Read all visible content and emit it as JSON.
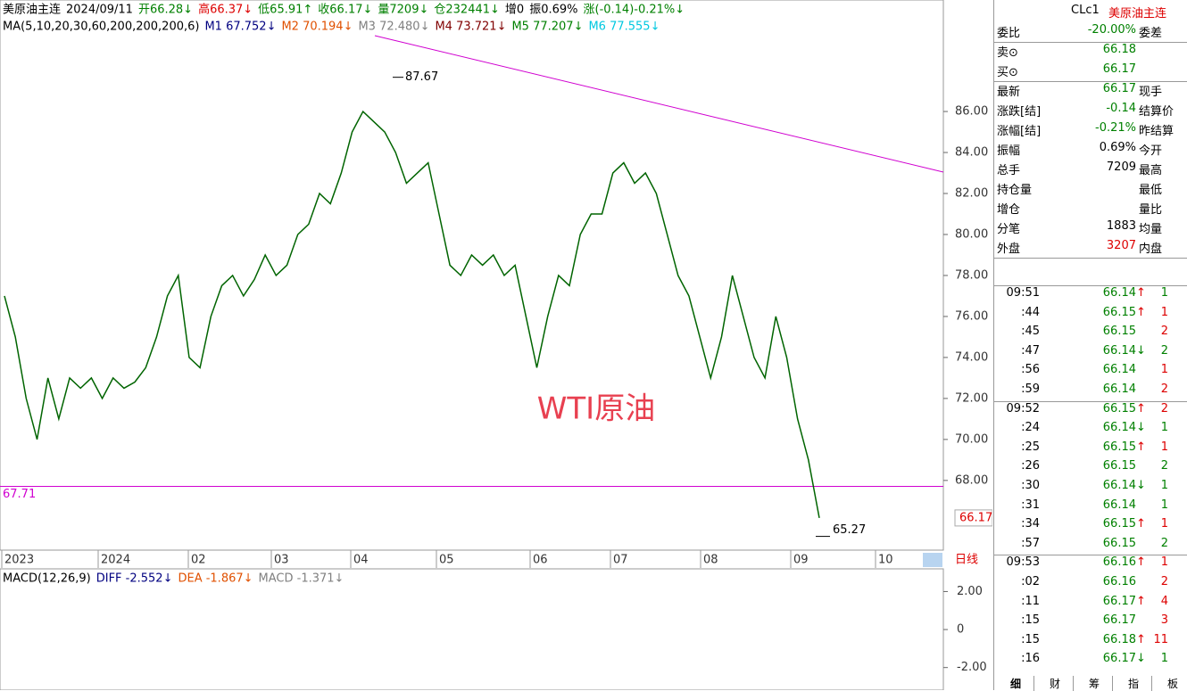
{
  "header": {
    "segments": [
      {
        "text": "美原油主连",
        "color": "#000"
      },
      {
        "text": "2024/09/11",
        "color": "#000"
      },
      {
        "text": "开66.28↓",
        "color": "#008000"
      },
      {
        "text": "高66.37↓",
        "color": "#d00"
      },
      {
        "text": "低65.91↑",
        "color": "#008000"
      },
      {
        "text": "收66.17↓",
        "color": "#008000"
      },
      {
        "text": "量7209↓",
        "color": "#008000"
      },
      {
        "text": "仓232441↓",
        "color": "#008000"
      },
      {
        "text": "增0",
        "color": "#000"
      },
      {
        "text": "振0.69%",
        "color": "#000"
      },
      {
        "text": "涨(-0.14)-0.21%↓",
        "color": "#008000"
      }
    ]
  },
  "ma_legend": [
    {
      "text": "MA(5,10,20,30,60,200,200,200,6)",
      "color": "#000"
    },
    {
      "text": "M1 67.752↓",
      "color": "#000080"
    },
    {
      "text": "M2 70.194↓",
      "color": "#e05000"
    },
    {
      "text": "M3 72.480↓",
      "color": "#808080"
    },
    {
      "text": "M4 73.721↓",
      "color": "#800000"
    },
    {
      "text": "M5 77.207↓",
      "color": "#008000"
    },
    {
      "text": "M6 77.555↓",
      "color": "#00c8e0"
    }
  ],
  "chart": {
    "type": "line",
    "watermark": "WTI原油",
    "color": "#006400",
    "values": [
      77,
      75,
      72,
      70,
      73,
      71,
      73,
      72.5,
      73,
      72,
      73,
      72.5,
      72.8,
      73.5,
      75,
      77,
      78,
      74,
      73.5,
      76,
      77.5,
      78,
      77,
      77.8,
      79,
      78,
      78.5,
      80,
      80.5,
      82,
      81.5,
      83,
      85,
      86,
      85.5,
      85,
      84,
      82.5,
      83,
      83.5,
      81,
      78.5,
      78,
      79,
      78.5,
      79,
      78,
      78.5,
      76,
      73.5,
      76,
      78,
      77.5,
      80,
      81,
      81,
      83,
      83.5,
      82.5,
      83,
      82,
      80,
      78,
      77,
      75,
      73,
      75,
      78,
      76,
      74,
      73,
      76,
      74,
      71,
      69,
      66.17
    ],
    "ylim": [
      64.6,
      89.7
    ],
    "yticks": [
      {
        "value": 68,
        "label": "68.00"
      },
      {
        "value": 70,
        "label": "70.00"
      },
      {
        "value": 72,
        "label": "72.00"
      },
      {
        "value": 74,
        "label": "74.00"
      },
      {
        "value": 76,
        "label": "76.00"
      },
      {
        "value": 78,
        "label": "78.00"
      },
      {
        "value": 80,
        "label": "80.00"
      },
      {
        "value": 82,
        "label": "82.00"
      },
      {
        "value": 84,
        "label": "84.00"
      },
      {
        "value": 86,
        "label": "86.00"
      }
    ],
    "high_label": {
      "value": 87.67,
      "label": "87.67"
    },
    "low_label": {
      "value": 65.27,
      "label": "65.27"
    },
    "hline": {
      "value": 67.71,
      "label": "67.71"
    },
    "last": {
      "value": 66.17,
      "label": "66.17"
    },
    "x_labels": [
      "2023",
      "2024",
      "02",
      "03",
      "04",
      "05",
      "06",
      "07",
      "08",
      "09",
      "10"
    ],
    "period": "日线"
  },
  "macd": {
    "labels": [
      {
        "text": "MACD(12,26,9)",
        "color": "#000"
      },
      {
        "text": "DIFF -2.552↓",
        "color": "#000080"
      },
      {
        "text": "DEA -1.867↓",
        "color": "#e05000"
      },
      {
        "text": "MACD -1.371↓",
        "color": "#808080"
      }
    ],
    "ylim": [
      -3.0,
      3.1
    ],
    "yticks": [
      {
        "value": 2,
        "label": "2.00"
      },
      0,
      {
        "value": -2,
        "label": "-2.00"
      }
    ]
  },
  "panel": {
    "code": "CLc1",
    "name": "美原油主连",
    "rows": [
      [
        "委比",
        "-20.00%",
        "委差"
      ],
      [
        "卖⊙",
        "66.18",
        null
      ],
      [
        "买⊙",
        "66.17",
        null
      ],
      [
        "最新",
        "66.17",
        "现手"
      ],
      [
        "涨跌[结]",
        "-0.14",
        "结算价"
      ],
      [
        "涨幅[结]",
        "-0.21%",
        "昨结算"
      ],
      [
        "振幅",
        "0.69%",
        "今开"
      ],
      [
        "总手",
        "7209",
        "最高"
      ],
      [
        "持仓量",
        null,
        "最低"
      ],
      [
        "增仓",
        null,
        "量比"
      ],
      [
        "分笔",
        "1883",
        "均量"
      ],
      [
        "外盘",
        "3207",
        "内盘"
      ]
    ],
    "trades": [
      [
        "09:51",
        "66.14",
        "↑",
        "1",
        "g"
      ],
      [
        ":44",
        "66.15",
        "↑",
        "1",
        "r"
      ],
      [
        ":45",
        "66.15",
        null,
        "2",
        "r"
      ],
      [
        ":47",
        "66.14",
        "↓",
        "2",
        "g"
      ],
      [
        ":56",
        "66.14",
        null,
        "1",
        "r"
      ],
      [
        ":59",
        "66.14",
        null,
        "2",
        "r"
      ],
      [
        "09:52",
        "66.15",
        "↑",
        "2",
        "r"
      ],
      [
        ":24",
        "66.14",
        "↓",
        "1",
        "g"
      ],
      [
        ":25",
        "66.15",
        "↑",
        "1",
        "r"
      ],
      [
        ":26",
        "66.15",
        null,
        "2",
        "g"
      ],
      [
        ":30",
        "66.14",
        "↓",
        "1",
        "g"
      ],
      [
        ":31",
        "66.14",
        null,
        "1",
        "g"
      ],
      [
        ":34",
        "66.15",
        "↑",
        "1",
        "r"
      ],
      [
        ":57",
        "66.15",
        null,
        "2",
        "g"
      ],
      [
        "09:53",
        "66.16",
        "↑",
        "1",
        "r"
      ],
      [
        ":02",
        "66.16",
        null,
        "2",
        "r"
      ],
      [
        ":11",
        "66.17",
        "↑",
        "4",
        "r"
      ],
      [
        ":15",
        "66.17",
        null,
        "3",
        "r"
      ],
      [
        ":15",
        "66.18",
        "↑",
        "11",
        "r"
      ],
      [
        ":16",
        "66.17",
        "↓",
        "1",
        "g"
      ]
    ],
    "tabs": [
      "细",
      "财",
      "筹",
      "指",
      "板"
    ]
  }
}
